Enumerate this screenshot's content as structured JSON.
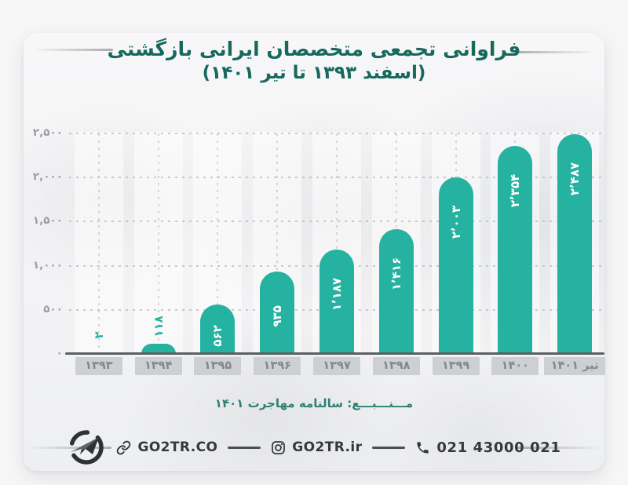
{
  "title": {
    "line1": "فراوانی تجمعی متخصصان ایرانی بازگشتی",
    "line2": "(اسفند ۱۳۹۳ تا تیر ۱۴۰۱)"
  },
  "chart_data": {
    "type": "bar",
    "title": "فراوانی تجمعی متخصصان ایرانی بازگشتی (اسفند ۱۳۹۳ تا تیر ۱۴۰۱)",
    "categories": [
      "۱۳۹۳",
      "۱۳۹۴",
      "۱۳۹۵",
      "۱۳۹۶",
      "۱۳۹۷",
      "۱۳۹۸",
      "۱۳۹۹",
      "۱۴۰۰",
      "تیر ۱۴۰۱"
    ],
    "values": [
      2,
      118,
      562,
      935,
      1187,
      1416,
      2003,
      2354,
      2487
    ],
    "value_labels": [
      "۲",
      "۱۱۸",
      "۵۶۲",
      "۹۳۵",
      "۱٬۱۸۷",
      "۱٬۴۱۶",
      "۲٬۰۰۳",
      "۲٬۳۵۴",
      "۲٬۴۸۷"
    ],
    "y_ticks": [
      {
        "label": "۲,۵۰۰",
        "value": 2500
      },
      {
        "label": "۲,۰۰۰",
        "value": 2000
      },
      {
        "label": "۱,۵۰۰",
        "value": 1500
      },
      {
        "label": "۱,۰۰۰",
        "value": 1000
      },
      {
        "label": "۵۰۰",
        "value": 500
      },
      {
        "label": "۰",
        "value": 0
      }
    ],
    "ylim": [
      0,
      2500
    ],
    "xlabel": "",
    "ylabel": "",
    "grid": "dotted",
    "legend": "none",
    "bar_color": "#25b2a1",
    "value_label_inside_color": "#ffffff",
    "value_label_outside_color": "#25b2a1"
  },
  "source": {
    "text": "مـــنـــبـــع: سالنامه مهاجرت ۱۴۰۱"
  },
  "footer": {
    "brand": "GO2TR",
    "website": "GO2TR.CO",
    "instagram": "GO2TR.ir",
    "phone": "021 43000 021"
  },
  "colors": {
    "bar": "#25b2a1",
    "title": "#17695d",
    "source": "#2e8073",
    "axis_line": "#5a5f64",
    "y_tick_text": "#999ea4",
    "x_label_bg": "#cdd0d3",
    "x_label_text": "#82888e",
    "footer_text": "#34383c"
  }
}
